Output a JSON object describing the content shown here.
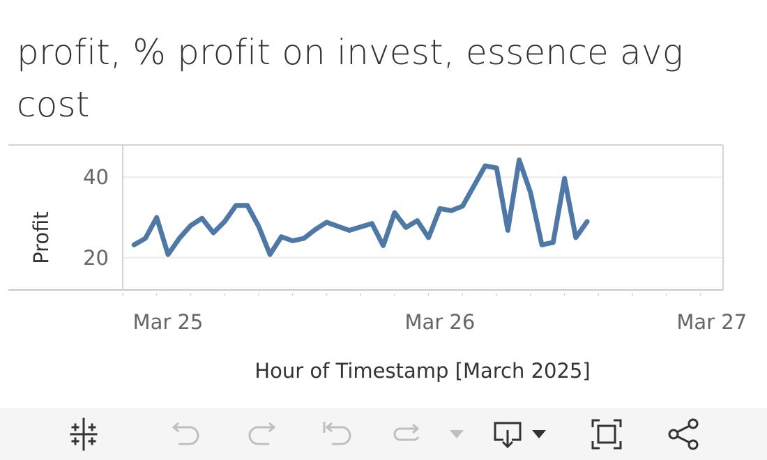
{
  "title": "profit, % profit on invest, essence avg cost",
  "chart_data": {
    "type": "line",
    "xlabel": "Hour of Timestamp [March 2025]",
    "ylabel": "Profit",
    "x_ticks": [
      "Mar 25",
      "Mar 26",
      "Mar 27"
    ],
    "x_range": [
      "2025-03-24 20:00",
      "2025-03-27 01:00"
    ],
    "y_ticks": [
      20,
      40
    ],
    "ylim": [
      12,
      48
    ],
    "grid": true,
    "color": "#4e79a7",
    "x": [
      "2025-03-24 21:00",
      "2025-03-24 22:00",
      "2025-03-24 23:00",
      "2025-03-25 00:00",
      "2025-03-25 01:00",
      "2025-03-25 02:00",
      "2025-03-25 03:00",
      "2025-03-25 04:00",
      "2025-03-25 05:00",
      "2025-03-25 06:00",
      "2025-03-25 07:00",
      "2025-03-25 08:00",
      "2025-03-25 09:00",
      "2025-03-25 10:00",
      "2025-03-25 11:00",
      "2025-03-25 12:00",
      "2025-03-25 13:00",
      "2025-03-25 14:00",
      "2025-03-25 16:00",
      "2025-03-25 18:00",
      "2025-03-25 19:00",
      "2025-03-25 20:00",
      "2025-03-25 21:00",
      "2025-03-25 22:00",
      "2025-03-25 23:00",
      "2025-03-26 00:00",
      "2025-03-26 01:00",
      "2025-03-26 02:00",
      "2025-03-26 03:00",
      "2025-03-26 04:00",
      "2025-03-26 05:00",
      "2025-03-26 06:00",
      "2025-03-26 07:00",
      "2025-03-26 08:00",
      "2025-03-26 09:00",
      "2025-03-26 10:00",
      "2025-03-26 11:00",
      "2025-03-26 12:00",
      "2025-03-26 13:00"
    ],
    "y": [
      23.2,
      24.8,
      30.0,
      20.8,
      24.8,
      28.0,
      29.8,
      26.2,
      29.0,
      33.0,
      33.0,
      27.8,
      20.8,
      25.2,
      24.2,
      24.8,
      27.0,
      28.8,
      26.8,
      28.5,
      23.0,
      31.2,
      27.5,
      29.2,
      25.0,
      32.2,
      31.7,
      32.8,
      37.8,
      42.8,
      42.3,
      26.8,
      44.3,
      36.2,
      23.2,
      23.8,
      39.7,
      25.0,
      29.0
    ]
  },
  "toolbar": {
    "items": [
      "tableau-logo-icon",
      "undo-icon",
      "redo-icon",
      "revert-icon",
      "refresh-icon",
      "dropdown-caret-icon",
      "download-icon",
      "dropdown-caret-icon",
      "fullscreen-icon",
      "share-icon"
    ]
  }
}
